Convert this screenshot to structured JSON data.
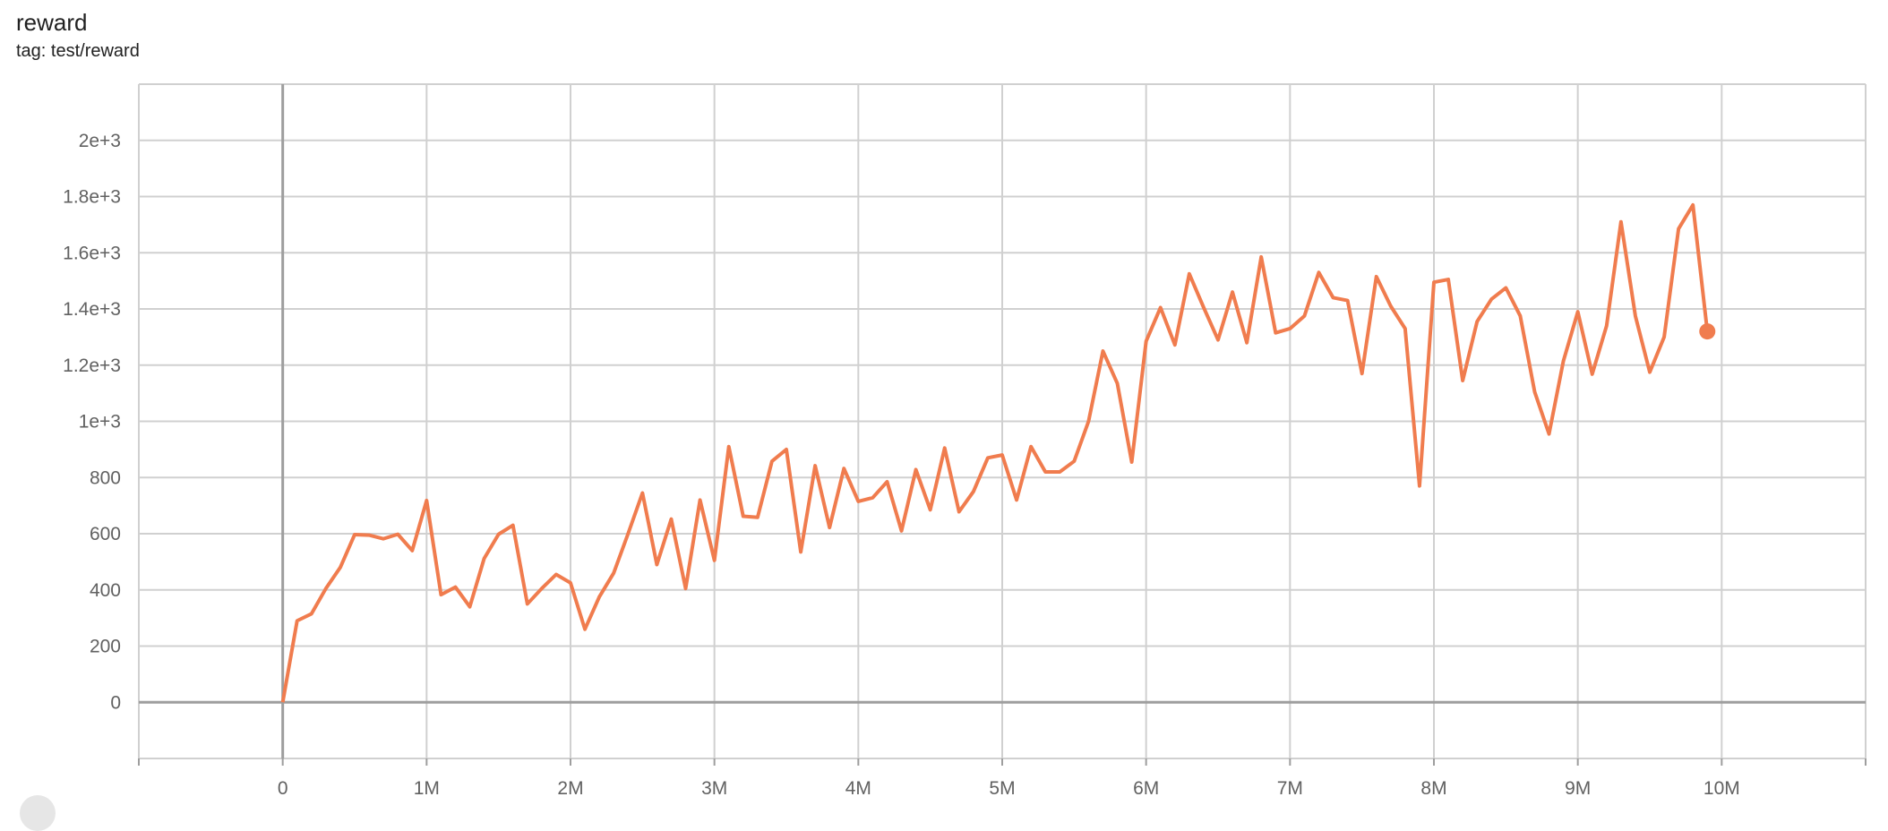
{
  "header": {
    "title": "reward",
    "tag": "tag: test/reward"
  },
  "chart_data": {
    "type": "line",
    "title": "reward",
    "xlabel": "",
    "ylabel": "",
    "xlim": [
      -1000000,
      11000000
    ],
    "ylim": [
      -200,
      2200
    ],
    "grid": true,
    "color": "#f07c4e",
    "x_ticks": [
      {
        "v": 0,
        "label": "0"
      },
      {
        "v": 1000000,
        "label": "1M"
      },
      {
        "v": 2000000,
        "label": "2M"
      },
      {
        "v": 3000000,
        "label": "3M"
      },
      {
        "v": 4000000,
        "label": "4M"
      },
      {
        "v": 5000000,
        "label": "5M"
      },
      {
        "v": 6000000,
        "label": "6M"
      },
      {
        "v": 7000000,
        "label": "7M"
      },
      {
        "v": 8000000,
        "label": "8M"
      },
      {
        "v": 9000000,
        "label": "9M"
      },
      {
        "v": 10000000,
        "label": "10M"
      }
    ],
    "y_ticks": [
      {
        "v": 0,
        "label": "0"
      },
      {
        "v": 200,
        "label": "200"
      },
      {
        "v": 400,
        "label": "400"
      },
      {
        "v": 600,
        "label": "600"
      },
      {
        "v": 800,
        "label": "800"
      },
      {
        "v": 1000,
        "label": "1e+3"
      },
      {
        "v": 1200,
        "label": "1.2e+3"
      },
      {
        "v": 1400,
        "label": "1.4e+3"
      },
      {
        "v": 1600,
        "label": "1.6e+3"
      },
      {
        "v": 1800,
        "label": "1.8e+3"
      },
      {
        "v": 2000,
        "label": "2e+3"
      }
    ],
    "x_step": 100000,
    "y": [
      0,
      290,
      315,
      405,
      480,
      597,
      595,
      582,
      598,
      540,
      718,
      383,
      410,
      340,
      512,
      598,
      630,
      350,
      405,
      455,
      425,
      260,
      375,
      460,
      600,
      745,
      490,
      652,
      405,
      720,
      505,
      910,
      662,
      658,
      858,
      900,
      535,
      842,
      622,
      832,
      715,
      728,
      785,
      610,
      828,
      685,
      905,
      678,
      750,
      870,
      880,
      720,
      910,
      820,
      820,
      858,
      1000,
      1250,
      1135,
      855,
      1285,
      1405,
      1272,
      1525,
      1405,
      1290,
      1460,
      1280,
      1585,
      1315,
      1330,
      1375,
      1530,
      1440,
      1430,
      1170,
      1515,
      1410,
      1330,
      770,
      1495,
      1505,
      1145,
      1355,
      1435,
      1475,
      1375,
      1105,
      955,
      1215,
      1390,
      1168,
      1340,
      1710,
      1375,
      1175,
      1300,
      1685,
      1770,
      1320
    ]
  }
}
